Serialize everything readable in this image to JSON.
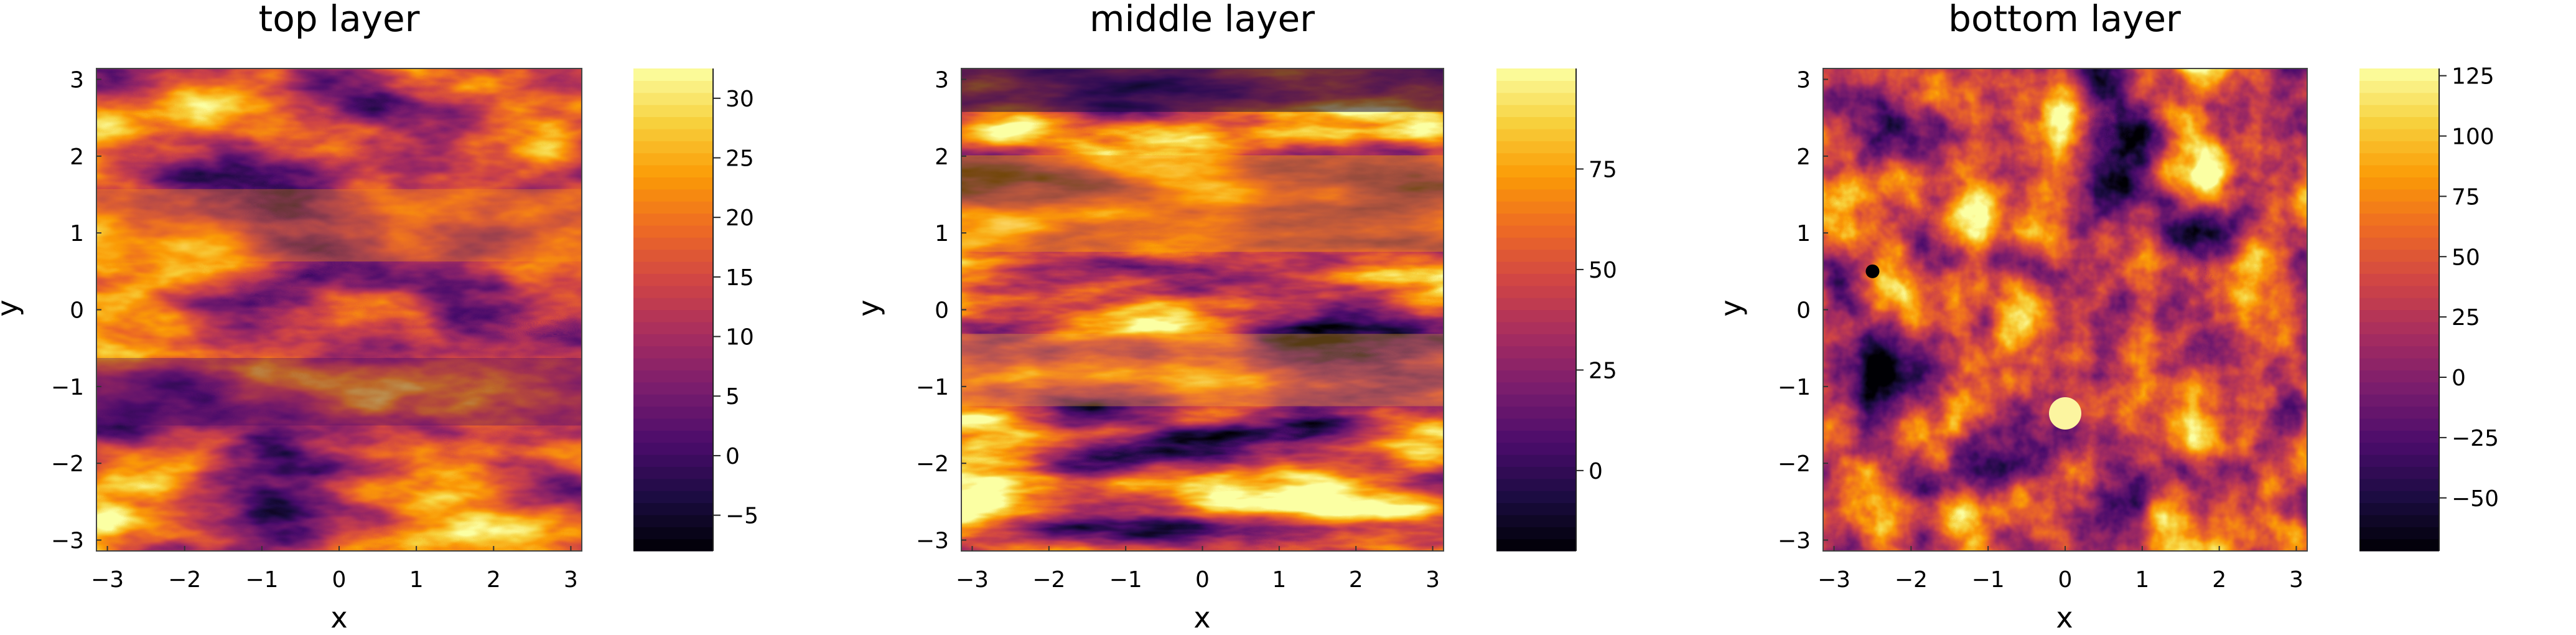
{
  "chart_data": [
    {
      "type": "heatmap",
      "title": "top layer",
      "xlabel": "x",
      "ylabel": "y",
      "xlim": [
        -3.14159,
        3.14159
      ],
      "ylim": [
        -3.14159,
        3.14159
      ],
      "xticks": [
        "−3",
        "−2",
        "−1",
        "0",
        "1",
        "2",
        "3"
      ],
      "yticks": [
        "−3",
        "−2",
        "−1",
        "0",
        "1",
        "2",
        "3"
      ],
      "colorbar": {
        "min": -8,
        "max": 32.5,
        "ticks": [
          -5,
          0,
          5,
          10,
          15,
          20,
          25,
          30
        ],
        "tick_labels": [
          "−5",
          "0",
          "5",
          "10",
          "15",
          "20",
          "25",
          "30"
        ]
      },
      "colormap": "inferno",
      "grid": false
    },
    {
      "type": "heatmap",
      "title": "middle layer",
      "xlabel": "x",
      "ylabel": "y",
      "xlim": [
        -3.14159,
        3.14159
      ],
      "ylim": [
        -3.14159,
        3.14159
      ],
      "xticks": [
        "−3",
        "−2",
        "−1",
        "0",
        "1",
        "2",
        "3"
      ],
      "yticks": [
        "−3",
        "−2",
        "−1",
        "0",
        "1",
        "2",
        "3"
      ],
      "colorbar": {
        "min": -20,
        "max": 100,
        "ticks": [
          0,
          25,
          50,
          75
        ],
        "tick_labels": [
          "0",
          "25",
          "50",
          "75"
        ]
      },
      "colormap": "inferno",
      "grid": false
    },
    {
      "type": "heatmap",
      "title": "bottom layer",
      "xlabel": "x",
      "ylabel": "y",
      "xlim": [
        -3.14159,
        3.14159
      ],
      "ylim": [
        -3.14159,
        3.14159
      ],
      "xticks": [
        "−3",
        "−2",
        "−1",
        "0",
        "1",
        "2",
        "3"
      ],
      "yticks": [
        "−3",
        "−2",
        "−1",
        "0",
        "1",
        "2",
        "3"
      ],
      "colorbar": {
        "min": -72,
        "max": 128,
        "ticks": [
          -50,
          -25,
          0,
          25,
          50,
          75,
          100,
          125
        ],
        "tick_labels": [
          "−50",
          "−25",
          "0",
          "25",
          "50",
          "75",
          "100",
          "125"
        ]
      },
      "colormap": "inferno",
      "grid": false
    }
  ],
  "colors": {
    "inferno": [
      "#000004",
      "#1b0c41",
      "#4a0c6b",
      "#781c6d",
      "#a52c60",
      "#cf4446",
      "#ed6925",
      "#fb9b06",
      "#f7d13d",
      "#fcffa4"
    ]
  }
}
